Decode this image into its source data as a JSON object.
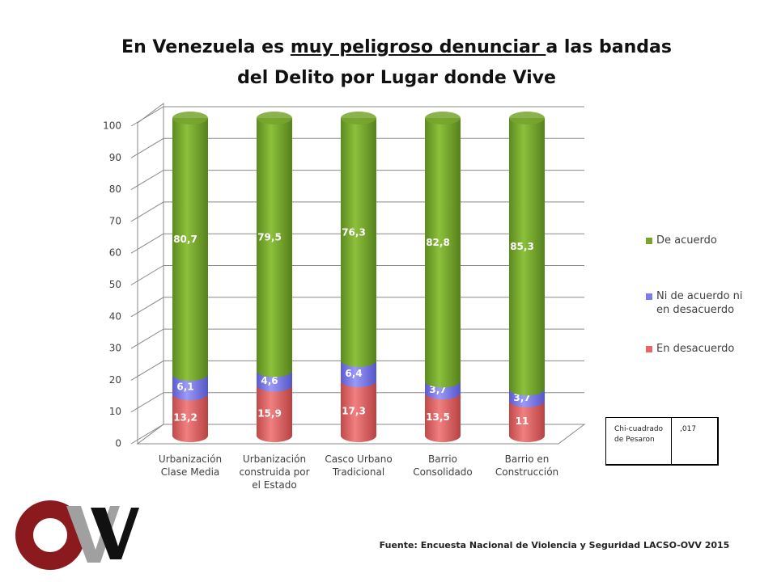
{
  "chart_data": {
    "type": "bar",
    "stacked": true,
    "title_parts": [
      "En Venezuela es ",
      "muy peligroso denunciar ",
      "a las bandas",
      "del Delito por Lugar donde Vive"
    ],
    "categories": [
      "Urbanización Clase Media",
      "Urbanización construida por el Estado",
      "Casco Urbano Tradicional",
      "Barrio Consolidado",
      "Barrio en Construcción"
    ],
    "series": [
      {
        "name": "En desacuerdo",
        "color": "#e66767",
        "values": [
          13.2,
          15.9,
          17.3,
          13.5,
          11
        ],
        "value_labels": [
          "13,2",
          "15,9",
          "17,3",
          "13,5",
          "11"
        ]
      },
      {
        "name": "Ni de acuerdo ni en desacuerdo",
        "color": "#7b7bee",
        "values": [
          6.1,
          4.6,
          6.4,
          3.7,
          3.7
        ],
        "value_labels": [
          "6,1",
          "4,6",
          "6,4",
          "3,7",
          "3,7"
        ]
      },
      {
        "name": "De acuerdo",
        "color": "#77a52d",
        "values": [
          80.7,
          79.5,
          76.3,
          82.8,
          85.3
        ],
        "value_labels": [
          "80,7",
          "79,5",
          "76,3",
          "82,8",
          "85,3"
        ]
      }
    ],
    "ylim": [
      0,
      100
    ],
    "yticks": [
      0,
      10,
      20,
      30,
      40,
      50,
      60,
      70,
      80,
      90,
      100
    ],
    "grid": true,
    "legend": "right",
    "stat_table": {
      "label": "Chi-cuadrado de Pesaron",
      "value": ",017"
    },
    "source": "Fuente: Encuesta Nacional de Violencia y Seguridad LACSO-OVV 2015"
  }
}
